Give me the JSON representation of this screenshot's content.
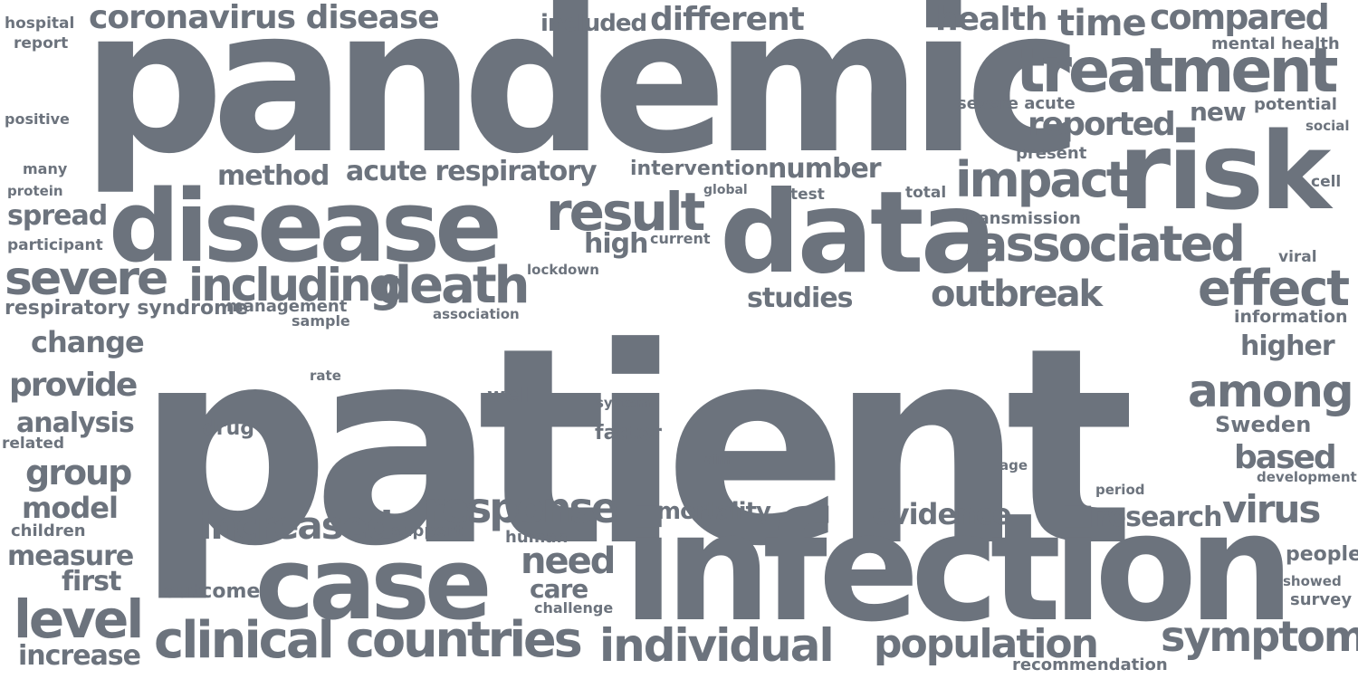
{
  "cloud": {
    "color": "#6c737d",
    "background": "#ffffff",
    "words": [
      {
        "id": "patient",
        "text": "patient"
      },
      {
        "id": "pandemic",
        "text": "pandemic"
      },
      {
        "id": "infection",
        "text": "infection"
      },
      {
        "id": "data",
        "text": "data"
      },
      {
        "id": "disease",
        "text": "disease"
      },
      {
        "id": "risk",
        "text": "risk"
      },
      {
        "id": "case",
        "text": "case"
      },
      {
        "id": "treatment",
        "text": "treatment"
      },
      {
        "id": "coronavirus-disease",
        "text": "coronavirus disease"
      },
      {
        "id": "severe",
        "text": "severe"
      },
      {
        "id": "death",
        "text": "death"
      },
      {
        "id": "result",
        "text": "result"
      },
      {
        "id": "associated",
        "text": "associated"
      },
      {
        "id": "impact",
        "text": "impact"
      },
      {
        "id": "effect",
        "text": "effect"
      },
      {
        "id": "including",
        "text": "including"
      },
      {
        "id": "clinical",
        "text": "clinical"
      },
      {
        "id": "countries",
        "text": "countries"
      },
      {
        "id": "individual",
        "text": "individual"
      },
      {
        "id": "response",
        "text": "response"
      },
      {
        "id": "increased",
        "text": "increased"
      },
      {
        "id": "level",
        "text": "level"
      },
      {
        "id": "among",
        "text": "among"
      },
      {
        "id": "symptom",
        "text": "symptom"
      },
      {
        "id": "population",
        "text": "population"
      },
      {
        "id": "outbreak",
        "text": "outbreak"
      },
      {
        "id": "reported",
        "text": "reported"
      },
      {
        "id": "compared",
        "text": "compared"
      },
      {
        "id": "different",
        "text": "different"
      },
      {
        "id": "health",
        "text": "health"
      },
      {
        "id": "time",
        "text": "time"
      },
      {
        "id": "need",
        "text": "need"
      },
      {
        "id": "virus",
        "text": "virus"
      },
      {
        "id": "acute-respiratory",
        "text": "acute respiratory"
      },
      {
        "id": "based",
        "text": "based"
      },
      {
        "id": "evidence",
        "text": "evidence"
      },
      {
        "id": "research",
        "text": "research"
      },
      {
        "id": "provide",
        "text": "provide"
      },
      {
        "id": "group",
        "text": "group"
      },
      {
        "id": "model",
        "text": "model"
      },
      {
        "id": "measure",
        "text": "measure"
      },
      {
        "id": "change",
        "text": "change"
      },
      {
        "id": "analysis",
        "text": "analysis"
      },
      {
        "id": "method",
        "text": "method"
      },
      {
        "id": "number",
        "text": "number"
      },
      {
        "id": "studies",
        "text": "studies"
      },
      {
        "id": "spread",
        "text": "spread"
      },
      {
        "id": "high",
        "text": "high"
      },
      {
        "id": "higher",
        "text": "higher"
      },
      {
        "id": "new",
        "text": "new"
      },
      {
        "id": "mortality",
        "text": "mortality"
      },
      {
        "id": "included",
        "text": "included"
      },
      {
        "id": "sweden",
        "text": "Sweden"
      },
      {
        "id": "first",
        "text": "first"
      },
      {
        "id": "increase",
        "text": "increase"
      },
      {
        "id": "care",
        "text": "care"
      },
      {
        "id": "respiratory-syndrome",
        "text": "respiratory syndrome"
      },
      {
        "id": "intervention",
        "text": "intervention"
      },
      {
        "id": "people",
        "text": "people"
      },
      {
        "id": "information",
        "text": "information"
      },
      {
        "id": "transmission",
        "text": "transmission"
      },
      {
        "id": "recommendation",
        "text": "recommendation"
      },
      {
        "id": "outcome",
        "text": "outcome"
      },
      {
        "id": "well",
        "text": "well"
      },
      {
        "id": "factor",
        "text": "factor"
      },
      {
        "id": "mental-health",
        "text": "mental health"
      },
      {
        "id": "severe-acute",
        "text": "severe acute"
      },
      {
        "id": "potential",
        "text": "potential"
      },
      {
        "id": "management",
        "text": "management"
      },
      {
        "id": "drug",
        "text": "drug"
      },
      {
        "id": "present",
        "text": "present"
      },
      {
        "id": "survey",
        "text": "survey"
      },
      {
        "id": "hospital",
        "text": "hospital"
      },
      {
        "id": "report",
        "text": "report"
      },
      {
        "id": "positive",
        "text": "positive"
      },
      {
        "id": "many",
        "text": "many"
      },
      {
        "id": "protein",
        "text": "protein"
      },
      {
        "id": "participant",
        "text": "participant"
      },
      {
        "id": "related",
        "text": "related"
      },
      {
        "id": "children",
        "text": "children"
      },
      {
        "id": "support",
        "text": "support"
      },
      {
        "id": "human",
        "text": "human"
      },
      {
        "id": "challenge",
        "text": "challenge"
      },
      {
        "id": "sample",
        "text": "sample"
      },
      {
        "id": "lockdown",
        "text": "lockdown"
      },
      {
        "id": "association",
        "text": "association"
      },
      {
        "id": "current",
        "text": "current"
      },
      {
        "id": "global",
        "text": "global"
      },
      {
        "id": "test",
        "text": "test"
      },
      {
        "id": "total",
        "text": "total"
      },
      {
        "id": "social",
        "text": "social"
      },
      {
        "id": "cell",
        "text": "cell"
      },
      {
        "id": "viral",
        "text": "viral"
      },
      {
        "id": "development",
        "text": "development"
      },
      {
        "id": "period",
        "text": "period"
      },
      {
        "id": "showed",
        "text": "showed"
      },
      {
        "id": "age",
        "text": "age"
      },
      {
        "id": "system",
        "text": "system"
      },
      {
        "id": "rate",
        "text": "rate"
      },
      {
        "id": "aim",
        "text": "aim"
      }
    ]
  }
}
